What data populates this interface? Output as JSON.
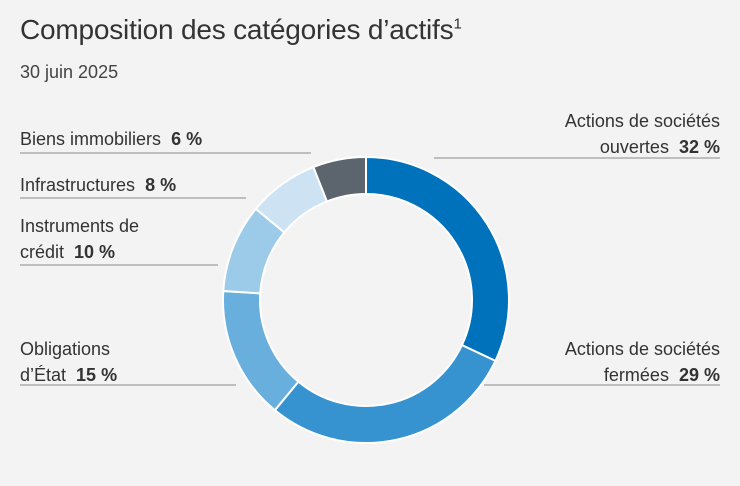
{
  "chart_data": {
    "type": "pie",
    "variant": "donut",
    "title": "Composition des catégories d’actifs",
    "title_footnote": "1",
    "subtitle": "30 juin 2025",
    "unit": "%",
    "slices": [
      {
        "name": "Actions de sociétés ouvertes",
        "value": 32,
        "value_label": "32 %",
        "color": "#0071bb",
        "text_line1": "Actions de sociétés",
        "text_line2": "ouvertes"
      },
      {
        "name": "Actions de sociétés fermées",
        "value": 29,
        "value_label": "29 %",
        "color": "#3693d0",
        "text_line1": "Actions de sociétés",
        "text_line2": "fermées"
      },
      {
        "name": "Obligations d’État",
        "value": 15,
        "value_label": "15 %",
        "color": "#68afdd",
        "text_line1": "Obligations",
        "text_line2": "d’État"
      },
      {
        "name": "Instruments de crédit",
        "value": 10,
        "value_label": "10 %",
        "color": "#9ccbea",
        "text_line1": "Instruments de",
        "text_line2": "crédit"
      },
      {
        "name": "Infrastructures",
        "value": 8,
        "value_label": "8 %",
        "color": "#cde3f4",
        "text_line1": "Infrastructures",
        "text_line2": ""
      },
      {
        "name": "Biens immobiliers",
        "value": 6,
        "value_label": "6 %",
        "color": "#5c646d",
        "text_line1": "Biens immobiliers",
        "text_line2": ""
      }
    ]
  }
}
